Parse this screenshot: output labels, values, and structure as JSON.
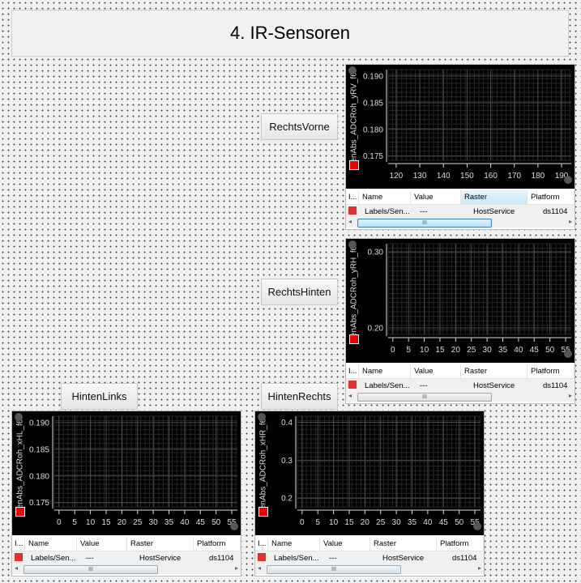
{
  "title": "4. IR-Sensoren",
  "buttons": {
    "rechts_vorne": "RechtsVorne",
    "rechts_hinten": "RechtsHinten",
    "hinten_links": "HintenLinks",
    "hinten_rechts": "HintenRechts"
  },
  "table_headers": [
    "I...",
    "Name",
    "Value",
    "Raster",
    "Platform"
  ],
  "colors": {
    "plot_bg": "#000000",
    "series": "#e00000",
    "grid": "#3a3a3a"
  },
  "chart_data": [
    {
      "type": "line",
      "ylabel": "SenAbs_ADCRoh_yRV_f64",
      "ylim": [
        0.1742,
        0.1912
      ],
      "yticks": [
        0.175,
        0.18,
        0.185,
        0.19
      ],
      "ytick_labels": [
        "0.175",
        "0.180",
        "0.185",
        "0.190"
      ],
      "xlim": [
        116.6,
        194.1
      ],
      "xticks": [
        120,
        130,
        140,
        150,
        160,
        170,
        180,
        190
      ],
      "series": [],
      "legend": "left",
      "row": {
        "name": "Labels/Sen...",
        "value": "---",
        "raster": "HostService",
        "platform": "ds1104"
      },
      "raster_sorted": true
    },
    {
      "type": "line",
      "ylabel": "SenAbs_ADCRoh_yRH_f64",
      "ylim": [
        0.1915,
        0.3106
      ],
      "yticks": [
        0.2,
        0.3
      ],
      "ytick_labels": [
        "0.20",
        "0.30"
      ],
      "xlim": [
        -1.5,
        56.8
      ],
      "xticks": [
        0,
        5,
        10,
        15,
        20,
        25,
        30,
        35,
        40,
        45,
        50,
        55
      ],
      "series": [],
      "legend": "left",
      "row": {
        "name": "Labels/Sen...",
        "value": "---",
        "raster": "HostService",
        "platform": "ds1104"
      }
    },
    {
      "type": "line",
      "ylabel": "SenAbs_ADCRoh_xHL_f64",
      "ylim": [
        0.1742,
        0.1912
      ],
      "yticks": [
        0.175,
        0.18,
        0.185,
        0.19
      ],
      "ytick_labels": [
        "0.175",
        "0.180",
        "0.185",
        "0.190"
      ],
      "xlim": [
        -1.5,
        56.8
      ],
      "xticks": [
        0,
        5,
        10,
        15,
        20,
        25,
        30,
        35,
        40,
        45,
        50,
        55
      ],
      "series": [],
      "legend": "left",
      "row": {
        "name": "Labels/Sen...",
        "value": "---",
        "raster": "HostService",
        "platform": "ds1104"
      }
    },
    {
      "type": "line",
      "ylabel": "SenAbs_ADCRoh_xHR_f64",
      "ylim": [
        0.177,
        0.416
      ],
      "yticks": [
        0.2,
        0.3,
        0.4
      ],
      "ytick_labels": [
        "0.2",
        "0.3",
        "0.4"
      ],
      "xlim": [
        -1.5,
        56.8
      ],
      "xticks": [
        0,
        5,
        10,
        15,
        20,
        25,
        30,
        35,
        40,
        45,
        50,
        55
      ],
      "series": [],
      "legend": "left",
      "row": {
        "name": "Labels/Sen...",
        "value": "---",
        "raster": "HostService",
        "platform": "ds1104"
      }
    }
  ]
}
